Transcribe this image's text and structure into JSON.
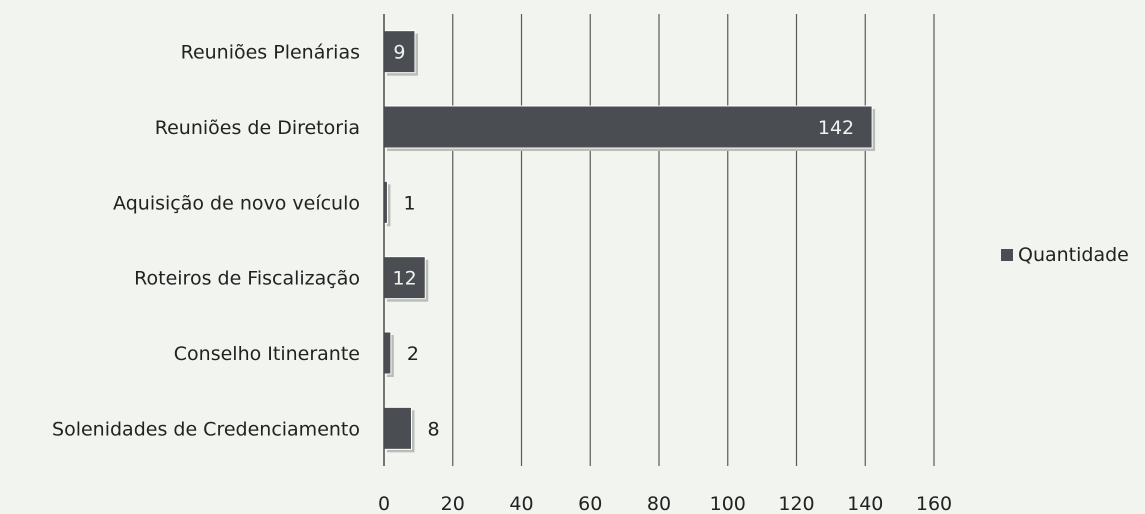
{
  "chart_data": {
    "type": "bar",
    "orientation": "horizontal",
    "categories": [
      "Reuniões Plenárias",
      "Reuniões de Diretoria",
      "Aquisição de novo veículo",
      "Roteiros de Fiscalização",
      "Conselho Itinerante",
      "Solenidades de Credenciamento"
    ],
    "series": [
      {
        "name": "Quantidade",
        "values": [
          9,
          142,
          1,
          12,
          2,
          8
        ],
        "color": "#4a4d52"
      }
    ],
    "xlim": [
      0,
      160
    ],
    "xticks": [
      0,
      20,
      40,
      60,
      80,
      100,
      120,
      140,
      160
    ],
    "grid": "vertical",
    "legend": "right",
    "title": "",
    "xlabel": "",
    "ylabel": ""
  }
}
